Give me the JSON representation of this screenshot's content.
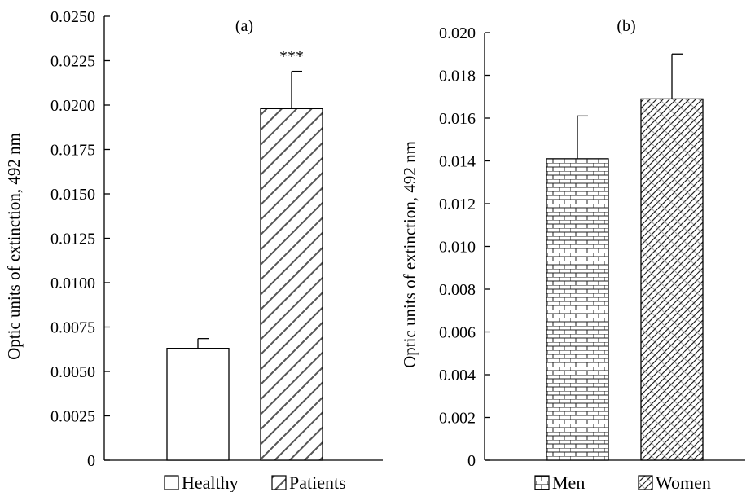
{
  "chart_data": [
    {
      "panel": "(a)",
      "type": "bar",
      "categories": [
        "Healthy",
        "Patients"
      ],
      "values": [
        0.0063,
        0.0198
      ],
      "error_bars": [
        0.00055,
        0.0021
      ],
      "annotations": [
        "",
        "***"
      ],
      "ylabel": "Optic units of extinction, 492 nm",
      "xlabel": "",
      "ylim": [
        0,
        0.025
      ],
      "yticks": [
        "0",
        "0.0025",
        "0.0050",
        "0.0075",
        "0.0100",
        "0.0125",
        "0.0150",
        "0.0175",
        "0.0200",
        "0.0225",
        "0.0250"
      ],
      "legend": [
        "Healthy",
        "Patients"
      ],
      "legend_position": "bottom",
      "grid": false
    },
    {
      "panel": "(b)",
      "type": "bar",
      "categories": [
        "Men",
        "Women"
      ],
      "values": [
        0.0141,
        0.0169
      ],
      "error_bars": [
        0.002,
        0.0021
      ],
      "annotations": [
        "",
        ""
      ],
      "ylabel": "Optic units of extinction, 492 nm",
      "xlabel": "",
      "ylim": [
        0,
        0.02
      ],
      "yticks": [
        "0",
        "0.002",
        "0.004",
        "0.006",
        "0.008",
        "0.010",
        "0.012",
        "0.014",
        "0.016",
        "0.018",
        "0.020"
      ],
      "legend": [
        "Men",
        "Women"
      ],
      "legend_position": "bottom",
      "grid": false
    }
  ]
}
